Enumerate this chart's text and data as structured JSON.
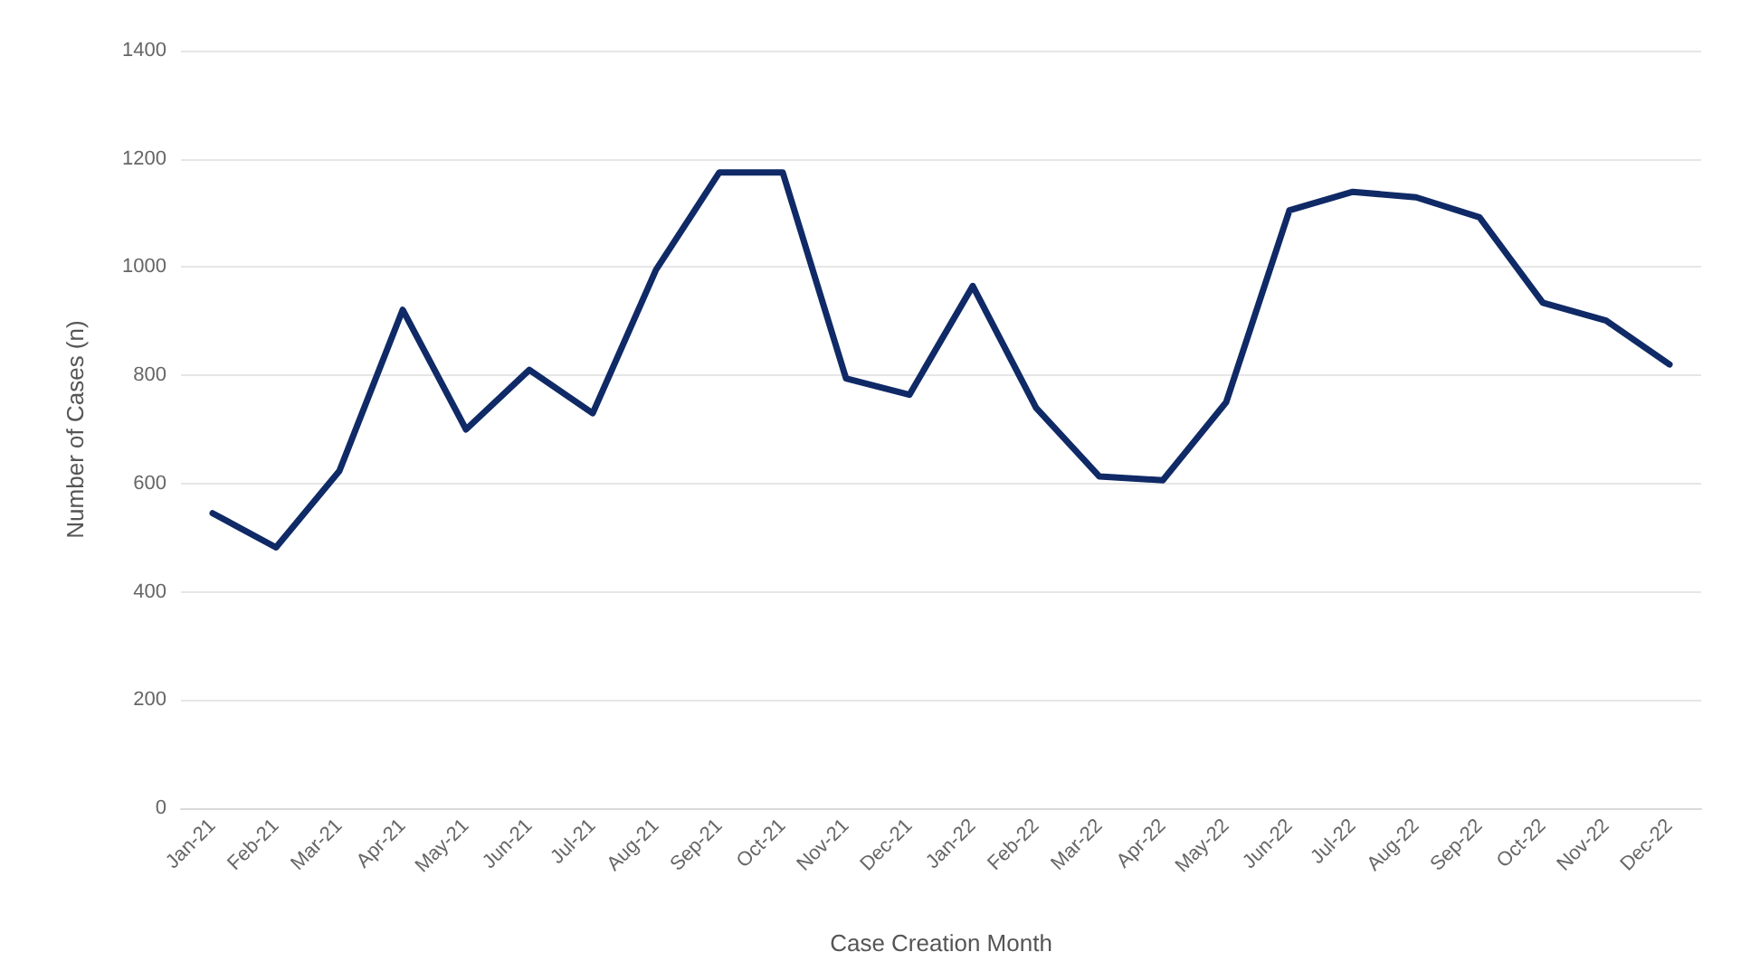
{
  "chart_data": {
    "type": "line",
    "xlabel": "Case Creation Month",
    "ylabel": "Number of Cases (n)",
    "categories": [
      "Jan-21",
      "Feb-21",
      "Mar-21",
      "Apr-21",
      "May-21",
      "Jun-21",
      "Jul-21",
      "Aug-21",
      "Sep-21",
      "Oct-21",
      "Nov-21",
      "Dec-21",
      "Jan-22",
      "Feb-22",
      "Mar-22",
      "Apr-22",
      "May-22",
      "Jun-22",
      "Jul-22",
      "Aug-22",
      "Sep-22",
      "Oct-22",
      "Nov-22",
      "Dec-22"
    ],
    "series": [
      {
        "color": "#0f2a66",
        "values": [
          545,
          482,
          623,
          921,
          700,
          810,
          730,
          995,
          1175,
          1175,
          794,
          764,
          965,
          740,
          613,
          606,
          750,
          1105,
          1139,
          1129,
          1092,
          934,
          901,
          820
        ]
      }
    ],
    "ylim": [
      0,
      1400
    ],
    "yticks": [
      0,
      200,
      400,
      600,
      800,
      1000,
      1200,
      1400
    ],
    "grid": "y",
    "marker": "none",
    "line_style": "solid"
  }
}
